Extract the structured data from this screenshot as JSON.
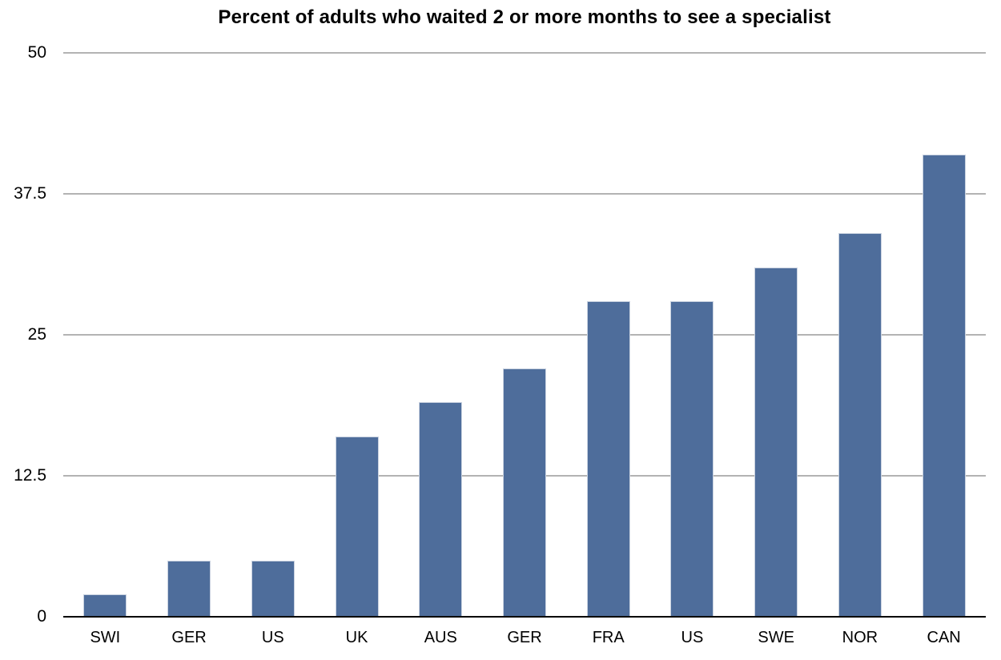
{
  "chart_data": {
    "type": "bar",
    "title": "Percent of adults who waited 2 or more months to see a specialist",
    "categories": [
      "SWI",
      "GER",
      "US",
      "UK",
      "AUS",
      "GER",
      "FRA",
      "US",
      "SWE",
      "NOR",
      "CAN"
    ],
    "values": [
      2,
      5,
      5,
      16,
      19,
      22,
      28,
      28,
      31,
      34,
      41
    ],
    "xlabel": "",
    "ylabel": "",
    "ylim": [
      0,
      50
    ],
    "yticks": [
      0,
      12.5,
      25,
      37.5,
      50
    ],
    "ytick_labels": [
      "0",
      "12.5",
      "25",
      "37.5",
      "50"
    ],
    "grid": "horizontal",
    "legend_position": "none",
    "colors": {
      "bar": "#4e6d9b",
      "bar_border": "#c9d2e0",
      "gridline": "#b3b3b3",
      "axis": "#000000",
      "text": "#000000",
      "background": "#ffffff"
    }
  }
}
